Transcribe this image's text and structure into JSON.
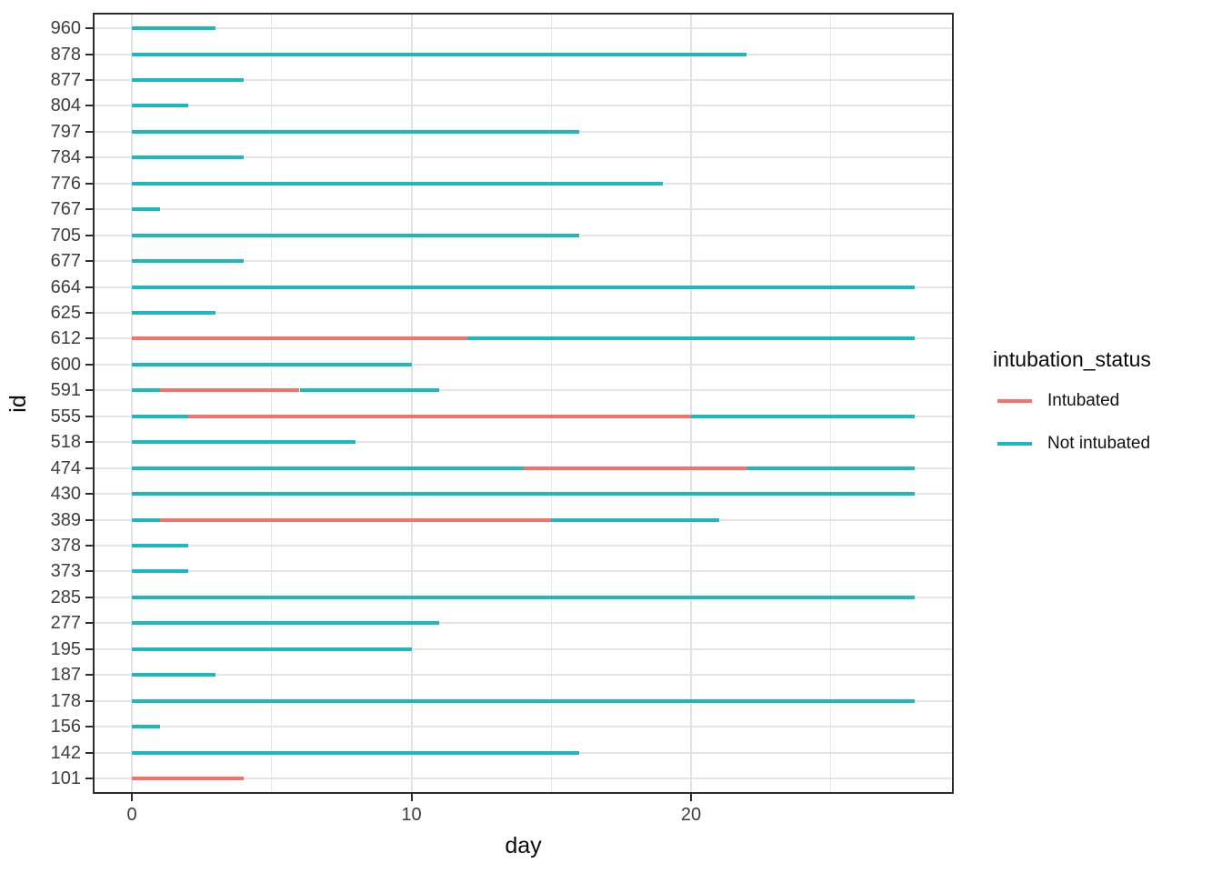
{
  "chart_data": {
    "type": "line",
    "variant": "horizontal-segment-timeline",
    "title": "",
    "xlabel": "day",
    "ylabel": "id",
    "xlim": [
      -1.4,
      29.4
    ],
    "x_major_ticks": [
      0,
      10,
      20
    ],
    "x_tick_labels": [
      "0",
      "10",
      "20"
    ],
    "x_minor_ticks": [
      5,
      15,
      25
    ],
    "grid": true,
    "legend": {
      "title": "intubation_status",
      "position": "right",
      "entries": [
        {
          "label": "Intubated",
          "color": "#f5716a"
        },
        {
          "label": "Not intubated",
          "color": "#1cb8be"
        }
      ]
    },
    "status_colors": {
      "Intubated": "#f5716a",
      "Not intubated": "#1cb8be"
    },
    "rows": [
      {
        "id": "960",
        "segments": [
          {
            "status": "Not intubated",
            "start": 0,
            "end": 3
          }
        ]
      },
      {
        "id": "878",
        "segments": [
          {
            "status": "Not intubated",
            "start": 0,
            "end": 22
          }
        ]
      },
      {
        "id": "877",
        "segments": [
          {
            "status": "Not intubated",
            "start": 0,
            "end": 4
          }
        ]
      },
      {
        "id": "804",
        "segments": [
          {
            "status": "Not intubated",
            "start": 0,
            "end": 2
          }
        ]
      },
      {
        "id": "797",
        "segments": [
          {
            "status": "Not intubated",
            "start": 0,
            "end": 16
          }
        ]
      },
      {
        "id": "784",
        "segments": [
          {
            "status": "Not intubated",
            "start": 0,
            "end": 4
          }
        ]
      },
      {
        "id": "776",
        "segments": [
          {
            "status": "Not intubated",
            "start": 0,
            "end": 19
          }
        ]
      },
      {
        "id": "767",
        "segments": [
          {
            "status": "Not intubated",
            "start": 0,
            "end": 1
          }
        ]
      },
      {
        "id": "705",
        "segments": [
          {
            "status": "Not intubated",
            "start": 0,
            "end": 16
          }
        ]
      },
      {
        "id": "677",
        "segments": [
          {
            "status": "Not intubated",
            "start": 0,
            "end": 4
          }
        ]
      },
      {
        "id": "664",
        "segments": [
          {
            "status": "Not intubated",
            "start": 0,
            "end": 28
          }
        ]
      },
      {
        "id": "625",
        "segments": [
          {
            "status": "Not intubated",
            "start": 0,
            "end": 3
          }
        ]
      },
      {
        "id": "612",
        "segments": [
          {
            "status": "Intubated",
            "start": 0,
            "end": 12
          },
          {
            "status": "Not intubated",
            "start": 12,
            "end": 28
          }
        ]
      },
      {
        "id": "600",
        "segments": [
          {
            "status": "Not intubated",
            "start": 0,
            "end": 10
          }
        ]
      },
      {
        "id": "591",
        "segments": [
          {
            "status": "Not intubated",
            "start": 0,
            "end": 1
          },
          {
            "status": "Intubated",
            "start": 1,
            "end": 6
          },
          {
            "status": "Not intubated",
            "start": 6,
            "end": 11
          }
        ]
      },
      {
        "id": "555",
        "segments": [
          {
            "status": "Not intubated",
            "start": 0,
            "end": 2
          },
          {
            "status": "Intubated",
            "start": 2,
            "end": 20
          },
          {
            "status": "Not intubated",
            "start": 20,
            "end": 28
          }
        ]
      },
      {
        "id": "518",
        "segments": [
          {
            "status": "Not intubated",
            "start": 0,
            "end": 8
          }
        ]
      },
      {
        "id": "474",
        "segments": [
          {
            "status": "Not intubated",
            "start": 0,
            "end": 14
          },
          {
            "status": "Intubated",
            "start": 14,
            "end": 22
          },
          {
            "status": "Not intubated",
            "start": 22,
            "end": 28
          }
        ]
      },
      {
        "id": "430",
        "segments": [
          {
            "status": "Not intubated",
            "start": 0,
            "end": 28
          }
        ]
      },
      {
        "id": "389",
        "segments": [
          {
            "status": "Not intubated",
            "start": 0,
            "end": 1
          },
          {
            "status": "Intubated",
            "start": 1,
            "end": 15
          },
          {
            "status": "Not intubated",
            "start": 15,
            "end": 21
          }
        ]
      },
      {
        "id": "378",
        "segments": [
          {
            "status": "Not intubated",
            "start": 0,
            "end": 2
          }
        ]
      },
      {
        "id": "373",
        "segments": [
          {
            "status": "Not intubated",
            "start": 0,
            "end": 2
          }
        ]
      },
      {
        "id": "285",
        "segments": [
          {
            "status": "Not intubated",
            "start": 0,
            "end": 28
          }
        ]
      },
      {
        "id": "277",
        "segments": [
          {
            "status": "Not intubated",
            "start": 0,
            "end": 11
          }
        ]
      },
      {
        "id": "195",
        "segments": [
          {
            "status": "Not intubated",
            "start": 0,
            "end": 10
          }
        ]
      },
      {
        "id": "187",
        "segments": [
          {
            "status": "Not intubated",
            "start": 0,
            "end": 3
          }
        ]
      },
      {
        "id": "178",
        "segments": [
          {
            "status": "Not intubated",
            "start": 0,
            "end": 28
          }
        ]
      },
      {
        "id": "156",
        "segments": [
          {
            "status": "Not intubated",
            "start": 0,
            "end": 1
          }
        ]
      },
      {
        "id": "142",
        "segments": [
          {
            "status": "Not intubated",
            "start": 0,
            "end": 16
          }
        ]
      },
      {
        "id": "101",
        "segments": [
          {
            "status": "Intubated",
            "start": 0,
            "end": 4
          }
        ]
      }
    ]
  }
}
